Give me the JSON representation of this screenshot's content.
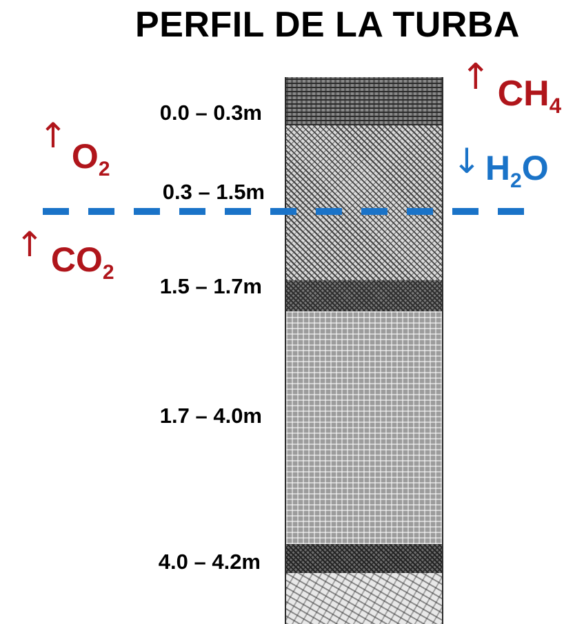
{
  "title": "PERFIL DE LA TURBA",
  "layers": [
    {
      "depth": "0.0 – 0.3m"
    },
    {
      "depth": "0.3 – 1.5m"
    },
    {
      "depth": "1.5 – 1.7m"
    },
    {
      "depth": "1.7 – 4.0m"
    },
    {
      "depth": "4.0 – 4.2m"
    }
  ],
  "gases": {
    "ch4": {
      "formula": "CH",
      "subscript": "4",
      "direction": "up",
      "arrow": "↑",
      "color": "#b0151b"
    },
    "o2": {
      "formula": "O",
      "subscript": "2",
      "direction": "up",
      "arrow": "↑",
      "color": "#b0151b"
    },
    "h2o": {
      "formula_a": "H",
      "subscript": "2",
      "formula_b": "O",
      "direction": "down",
      "arrow": "↓",
      "color": "#1a73c8"
    },
    "co2": {
      "formula": "CO",
      "subscript": "2",
      "direction": "up",
      "arrow": "↑",
      "color": "#b0151b"
    }
  },
  "water_table_color": "#1a73c8"
}
